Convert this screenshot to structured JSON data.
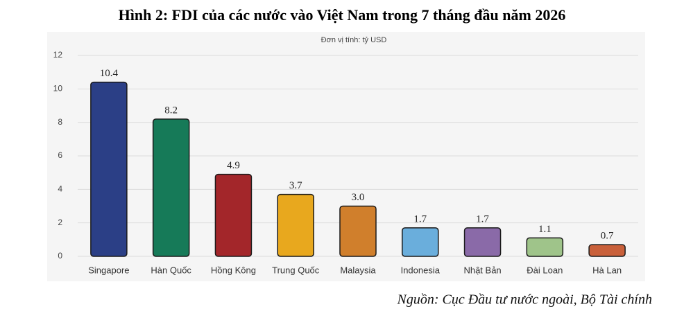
{
  "chart_data": {
    "type": "bar",
    "title": "Hình 2: FDI của các nước vào Việt Nam trong 7 tháng đầu năm 2026",
    "subtitle": "Đơn vị tính: tỷ USD",
    "source": "Nguồn: Cục Đầu tư nước ngoài, Bộ Tài chính",
    "categories": [
      "Singapore",
      "Hàn Quốc",
      "Hồng Kông",
      "Trung Quốc",
      "Malaysia",
      "Indonesia",
      "Nhật Bản",
      "Đài Loan",
      "Hà Lan"
    ],
    "values": [
      10.4,
      8.2,
      4.9,
      3.7,
      3,
      1.7,
      1.7,
      1.1,
      0.7
    ],
    "value_labels": [
      "10.4",
      "8.2",
      "4.9",
      "3.7",
      "3.0",
      "1.7",
      "1.7",
      "1.1",
      "0.7"
    ],
    "colors": [
      "#2b3f86",
      "#167a58",
      "#a3262a",
      "#e8a81e",
      "#d07f2c",
      "#6aaedc",
      "#8a6aa8",
      "#9fc48a",
      "#c9603a"
    ],
    "ylim": [
      0,
      12
    ],
    "yticks": [
      0,
      2,
      4,
      6,
      8,
      10,
      12
    ],
    "grid": true
  }
}
